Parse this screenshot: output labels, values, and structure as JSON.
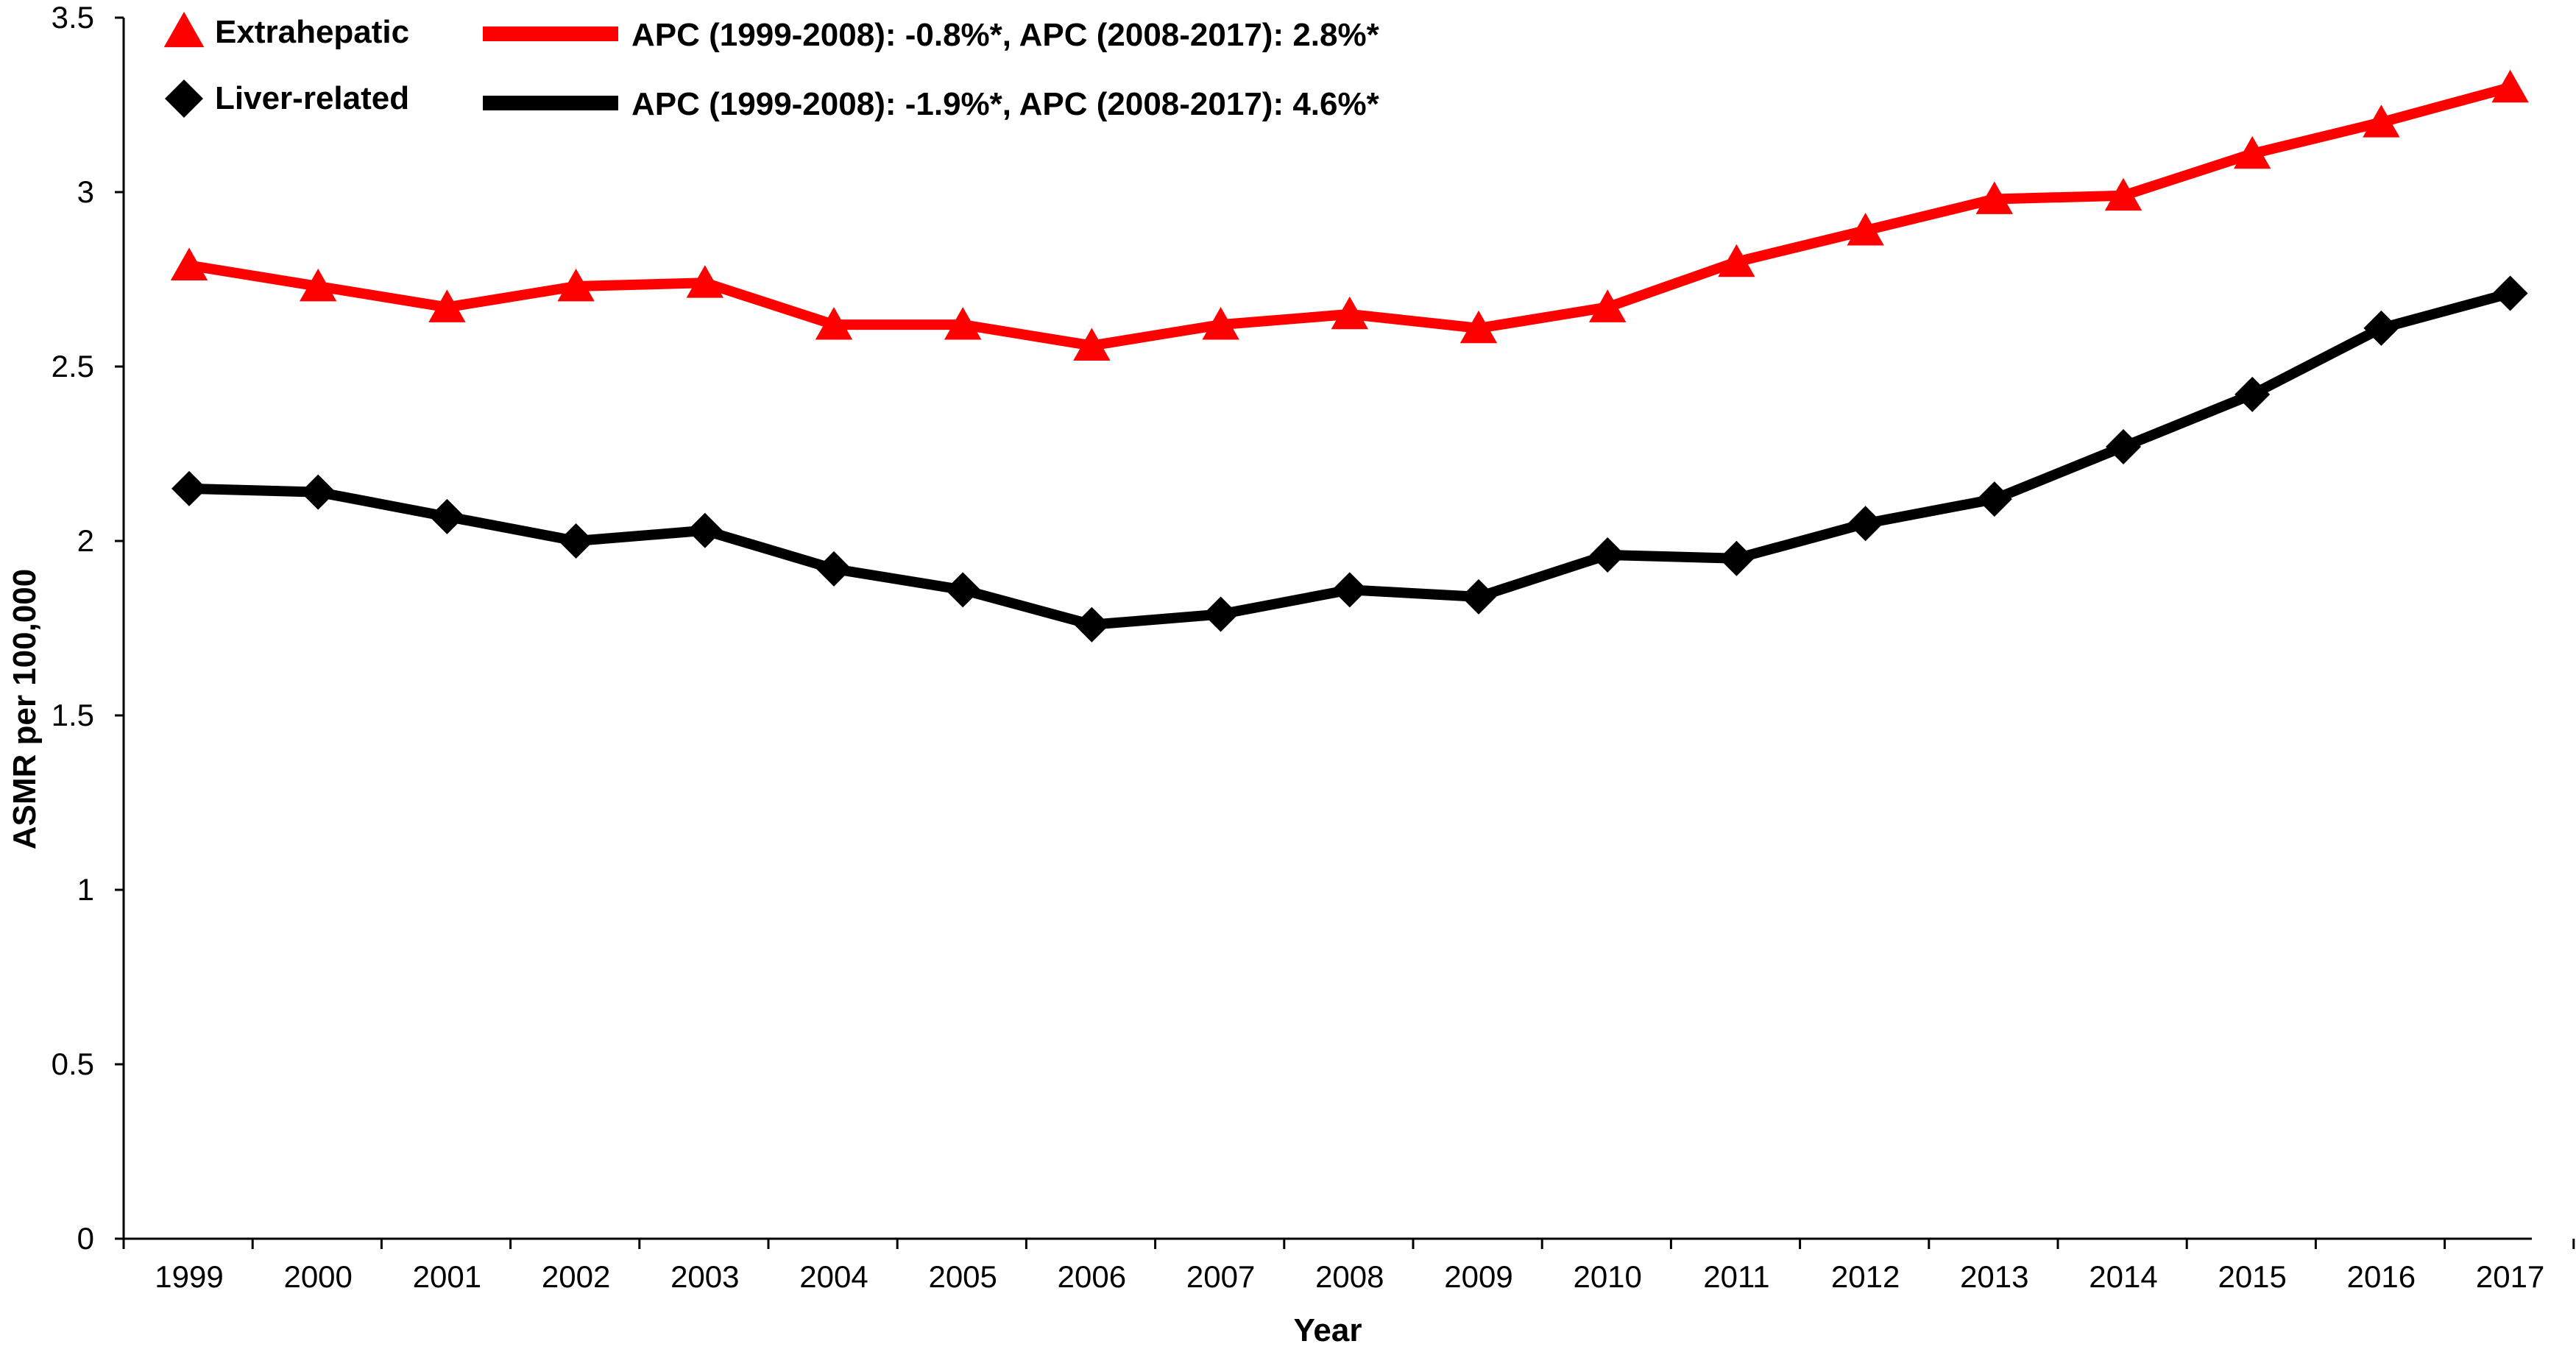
{
  "chart_data": {
    "type": "line",
    "categories": [
      "1999",
      "2000",
      "2001",
      "2002",
      "2003",
      "2004",
      "2005",
      "2006",
      "2007",
      "2008",
      "2009",
      "2010",
      "2011",
      "2012",
      "2013",
      "2014",
      "2015",
      "2016",
      "2017"
    ],
    "series": [
      {
        "name": "Extrahepatic",
        "marker": "triangle",
        "color": "#ff0000",
        "apc_label": "APC (1999-2008): -0.8%*, APC (2008-2017): 2.8%*",
        "values": [
          2.79,
          2.73,
          2.67,
          2.73,
          2.74,
          2.62,
          2.62,
          2.56,
          2.62,
          2.65,
          2.61,
          2.67,
          2.8,
          2.89,
          2.98,
          2.99,
          3.11,
          3.2,
          3.3
        ]
      },
      {
        "name": "Liver-related",
        "marker": "diamond",
        "color": "#000000",
        "apc_label": "APC (1999-2008): -1.9%*, APC (2008-2017): 4.6%*",
        "values": [
          2.15,
          2.14,
          2.07,
          2.0,
          2.03,
          1.92,
          1.86,
          1.76,
          1.79,
          1.86,
          1.84,
          1.96,
          1.95,
          2.05,
          2.12,
          2.27,
          2.42,
          2.61,
          2.71
        ]
      }
    ],
    "y_ticks": [
      "0",
      "0.5",
      "1",
      "1.5",
      "2",
      "2.5",
      "3",
      "3.5"
    ],
    "title": "",
    "xlabel": "Year",
    "ylabel": "ASMR per 100,000",
    "ylim": [
      0,
      3.5
    ],
    "grid": false,
    "legend_position": "top-left"
  }
}
